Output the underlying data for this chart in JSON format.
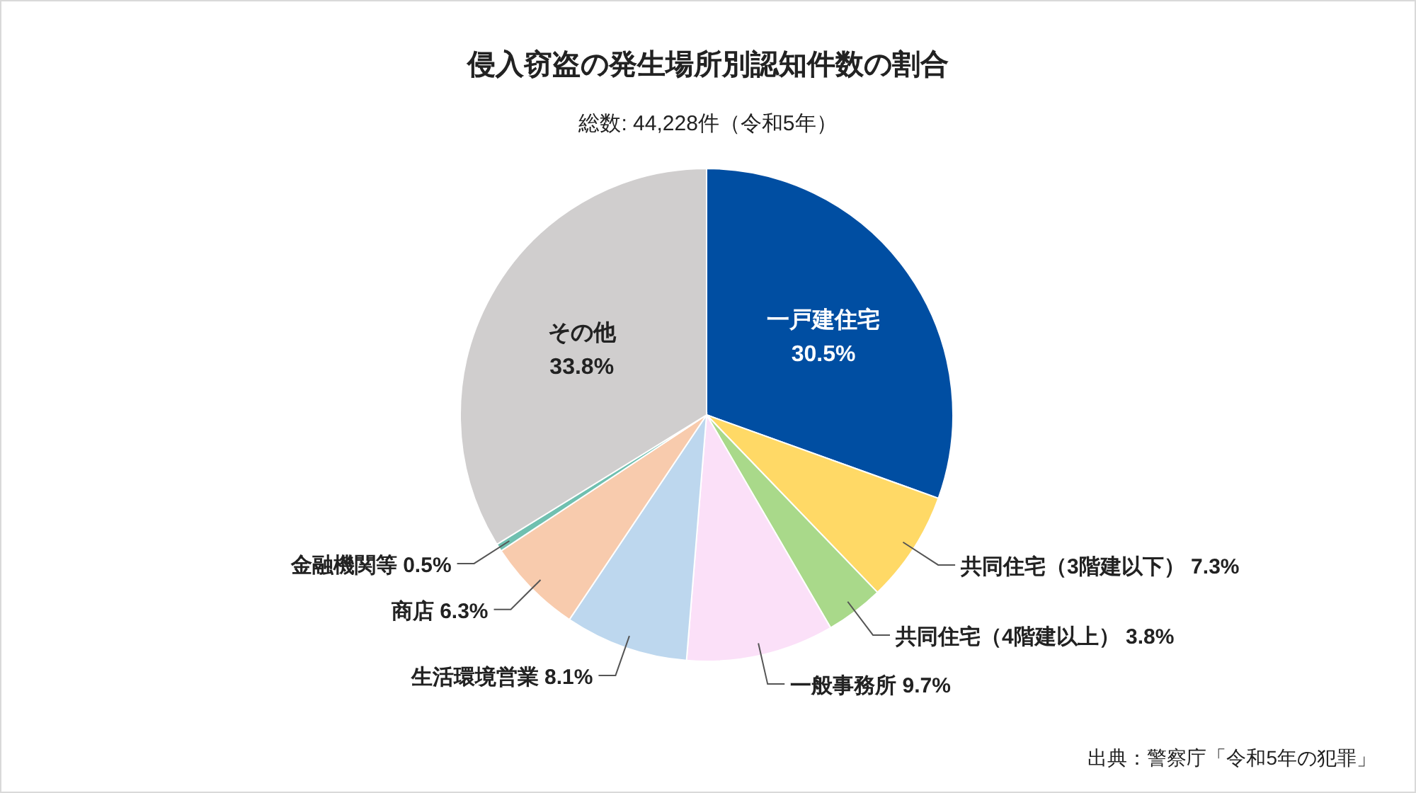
{
  "chart_data": {
    "type": "pie",
    "title": "侵入窃盗の発生場所別認知件数の割合",
    "subtitle": "総数: 44,228件（令和5年）",
    "categories": [
      "一戸建住宅",
      "共同住宅（3階建以下）",
      "共同住宅（4階建以上）",
      "一般事務所",
      "生活環境営業",
      "商店",
      "金融機関等",
      "その他"
    ],
    "values": [
      30.5,
      7.3,
      3.8,
      9.7,
      8.1,
      6.3,
      0.5,
      33.8
    ],
    "value_labels": [
      "30.5%",
      "7.3%",
      "3.8%",
      "9.7%",
      "8.1%",
      "6.3%",
      "0.5%",
      "33.8%"
    ],
    "colors": [
      "#004ea2",
      "#ffd966",
      "#a9d98a",
      "#fbe0f8",
      "#bdd7ee",
      "#f8cbad",
      "#70c0b0",
      "#d0cece"
    ],
    "legend": false,
    "annotations": [
      "出典：警察庁「令和5年の犯罪」"
    ]
  }
}
